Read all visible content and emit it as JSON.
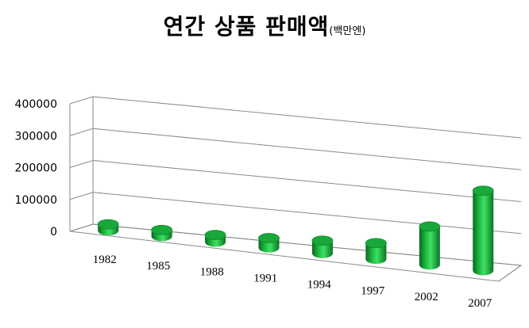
{
  "chart_data": {
    "type": "bar",
    "style": "3d-cylinder",
    "title": "연간 상품 판매액",
    "title_unit": "(백만엔)",
    "categories": [
      "1982",
      "1985",
      "1988",
      "1991",
      "1994",
      "1997",
      "2002",
      "2007"
    ],
    "values": [
      10000,
      14000,
      22000,
      30000,
      40000,
      50000,
      120000,
      250000
    ],
    "ylim": [
      0,
      400000
    ],
    "yticks": [
      "400000",
      "300000",
      "200000",
      "100000",
      "0"
    ],
    "grid": true,
    "legend": false,
    "bar_color": "#19a83a"
  }
}
